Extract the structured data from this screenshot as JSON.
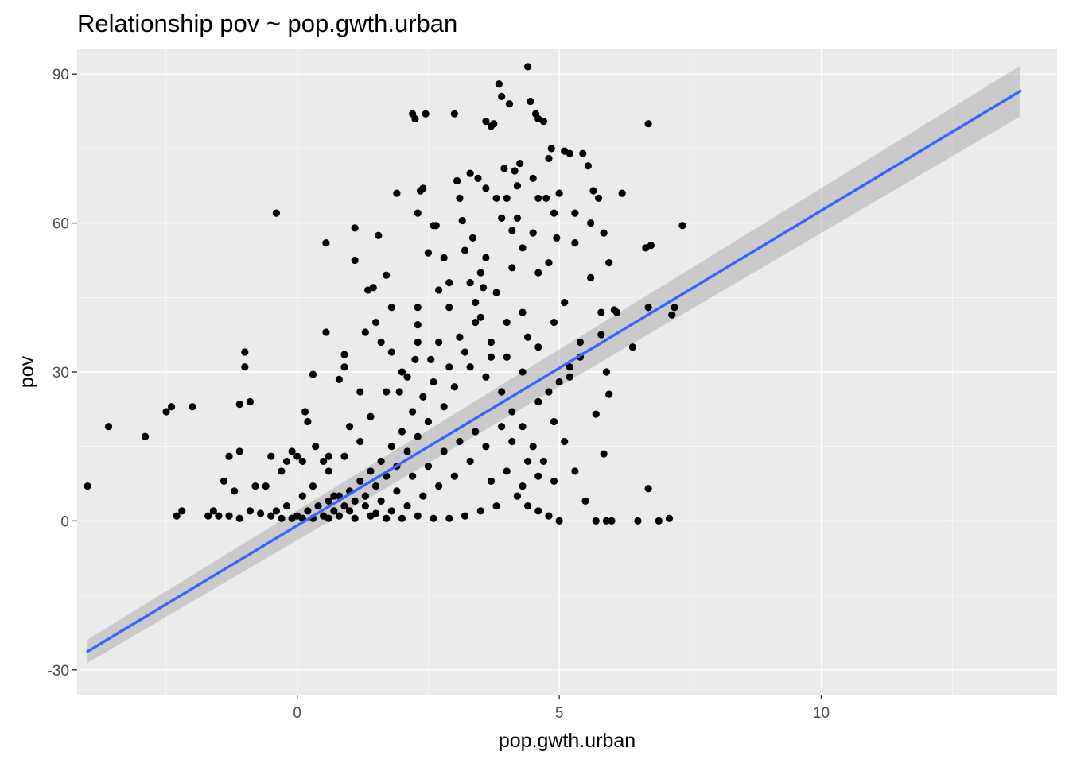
{
  "chart_data": {
    "type": "scatter",
    "title": "Relationship pov ~ pop.gwth.urban",
    "xlabel": "pop.gwth.urban",
    "ylabel": "pov",
    "xlim": [
      -4.2,
      14.5
    ],
    "ylim": [
      -35,
      95
    ],
    "xticks": [
      0,
      5,
      10
    ],
    "xminor": [
      -2.5,
      2.5,
      7.5,
      12.5
    ],
    "yticks": [
      -30,
      0,
      30,
      60,
      90
    ],
    "yminor": [
      -15,
      15,
      45,
      75
    ],
    "grid": true,
    "legend": "none",
    "colors": {
      "panel": "#ebebeb",
      "grid": "#ffffff",
      "points": "#000000",
      "fit_line": "#3366ff",
      "ci_band": "#999999"
    },
    "fit": {
      "method": "lm",
      "x": [
        -4.0,
        13.8
      ],
      "y": [
        -26.3,
        86.6
      ],
      "ci_lower": [
        -28.6,
        81.5
      ],
      "ci_upper": [
        -23.9,
        91.7
      ]
    },
    "points": [
      [
        -4.0,
        7
      ],
      [
        -3.6,
        19
      ],
      [
        -2.9,
        17
      ],
      [
        -2.5,
        22
      ],
      [
        -2.4,
        23
      ],
      [
        -2.0,
        23
      ],
      [
        -2.3,
        1
      ],
      [
        -2.2,
        2
      ],
      [
        -1.7,
        1
      ],
      [
        -1.6,
        2
      ],
      [
        -1.5,
        1
      ],
      [
        -1.4,
        8
      ],
      [
        -1.3,
        13
      ],
      [
        -1.2,
        6
      ],
      [
        -1.1,
        14
      ],
      [
        -1.0,
        31
      ],
      [
        -1.0,
        34
      ],
      [
        -1.1,
        23.5
      ],
      [
        -0.9,
        24
      ],
      [
        -0.8,
        7
      ],
      [
        -0.6,
        7
      ],
      [
        -0.5,
        13
      ],
      [
        -0.4,
        62
      ],
      [
        -0.3,
        10
      ],
      [
        -0.2,
        12
      ],
      [
        -0.1,
        14
      ],
      [
        0.0,
        13
      ],
      [
        0.1,
        12
      ],
      [
        0.15,
        22
      ],
      [
        0.2,
        20
      ],
      [
        0.3,
        29.5
      ],
      [
        0.35,
        15
      ],
      [
        0.5,
        12
      ],
      [
        0.55,
        38
      ],
      [
        0.55,
        56
      ],
      [
        0.6,
        13
      ],
      [
        0.7,
        5
      ],
      [
        0.8,
        28.5
      ],
      [
        0.9,
        31
      ],
      [
        0.9,
        33.5
      ],
      [
        1.0,
        19
      ],
      [
        1.1,
        52.5
      ],
      [
        1.1,
        59
      ],
      [
        1.2,
        26
      ],
      [
        1.3,
        38
      ],
      [
        1.35,
        46.5
      ],
      [
        1.45,
        47
      ],
      [
        1.5,
        40
      ],
      [
        1.55,
        57.5
      ],
      [
        1.6,
        36
      ],
      [
        1.7,
        49.5
      ],
      [
        1.8,
        43
      ],
      [
        1.9,
        66
      ],
      [
        1.8,
        34
      ],
      [
        1.95,
        26
      ],
      [
        2.1,
        29
      ],
      [
        2.2,
        82
      ],
      [
        2.25,
        81
      ],
      [
        2.3,
        62
      ],
      [
        2.35,
        66.5
      ],
      [
        2.4,
        67
      ],
      [
        2.45,
        82
      ],
      [
        2.5,
        54
      ],
      [
        2.6,
        59.5
      ],
      [
        2.65,
        59.5
      ],
      [
        2.3,
        43
      ],
      [
        2.3,
        39.5
      ],
      [
        2.3,
        36
      ],
      [
        2.25,
        32.5
      ],
      [
        2.55,
        32.5
      ],
      [
        2.7,
        46.5
      ],
      [
        2.8,
        53
      ],
      [
        2.9,
        48
      ],
      [
        3.0,
        82
      ],
      [
        3.05,
        68.5
      ],
      [
        3.1,
        65
      ],
      [
        3.15,
        60.5
      ],
      [
        3.2,
        54.5
      ],
      [
        3.3,
        70
      ],
      [
        3.35,
        57
      ],
      [
        3.4,
        44
      ],
      [
        3.45,
        69
      ],
      [
        3.5,
        50
      ],
      [
        3.55,
        47
      ],
      [
        3.6,
        80.5
      ],
      [
        3.6,
        67
      ],
      [
        3.7,
        79.5
      ],
      [
        3.75,
        80
      ],
      [
        3.8,
        65
      ],
      [
        3.85,
        88
      ],
      [
        3.9,
        85.5
      ],
      [
        3.95,
        71
      ],
      [
        4.0,
        65
      ],
      [
        4.05,
        84
      ],
      [
        4.1,
        58.5
      ],
      [
        4.15,
        70.5
      ],
      [
        4.2,
        67.5
      ],
      [
        4.25,
        72
      ],
      [
        4.3,
        55
      ],
      [
        4.4,
        91.5
      ],
      [
        4.45,
        84.5
      ],
      [
        4.5,
        69
      ],
      [
        4.55,
        82
      ],
      [
        4.6,
        81
      ],
      [
        4.7,
        80.5
      ],
      [
        4.75,
        65
      ],
      [
        4.8,
        73
      ],
      [
        4.85,
        75
      ],
      [
        4.9,
        62
      ],
      [
        4.95,
        57
      ],
      [
        5.1,
        74.5
      ],
      [
        5.2,
        74
      ],
      [
        5.3,
        62
      ],
      [
        5.45,
        74
      ],
      [
        5.55,
        71.5
      ],
      [
        5.65,
        66.5
      ],
      [
        5.75,
        65
      ],
      [
        5.85,
        58
      ],
      [
        5.95,
        52
      ],
      [
        6.05,
        42.5
      ],
      [
        6.2,
        66
      ],
      [
        6.7,
        80
      ],
      [
        6.65,
        55
      ],
      [
        6.75,
        55.5
      ],
      [
        6.7,
        43
      ],
      [
        7.35,
        59.5
      ],
      [
        7.15,
        41.5
      ],
      [
        7.2,
        43
      ],
      [
        5.8,
        37.5
      ],
      [
        5.9,
        30
      ],
      [
        5.95,
        25.5
      ],
      [
        5.7,
        21.5
      ],
      [
        5.85,
        13.5
      ],
      [
        6.7,
        6.5
      ],
      [
        7.1,
        0.5
      ],
      [
        5.4,
        36
      ],
      [
        5.2,
        29
      ],
      [
        5.0,
        28
      ],
      [
        4.8,
        26
      ],
      [
        4.6,
        24
      ],
      [
        4.3,
        30
      ],
      [
        4.0,
        33
      ],
      [
        3.7,
        36
      ],
      [
        3.4,
        40
      ],
      [
        3.1,
        37
      ],
      [
        2.9,
        31
      ],
      [
        2.6,
        28
      ],
      [
        2.4,
        25
      ],
      [
        2.2,
        22
      ],
      [
        2.0,
        18
      ],
      [
        1.8,
        15
      ],
      [
        1.6,
        12
      ],
      [
        1.4,
        10
      ],
      [
        1.2,
        8
      ],
      [
        1.0,
        6
      ],
      [
        0.8,
        5
      ],
      [
        0.6,
        4
      ],
      [
        0.4,
        3
      ],
      [
        0.2,
        2
      ],
      [
        0.0,
        1
      ],
      [
        5.3,
        10
      ],
      [
        5.5,
        4
      ],
      [
        5.7,
        0
      ],
      [
        5.9,
        0
      ],
      [
        6.0,
        0
      ],
      [
        6.5,
        0
      ],
      [
        6.9,
        0
      ],
      [
        5.0,
        0
      ],
      [
        4.9,
        8
      ],
      [
        4.7,
        12
      ],
      [
        4.5,
        15
      ],
      [
        4.3,
        19
      ],
      [
        4.1,
        22
      ],
      [
        3.9,
        26
      ],
      [
        3.6,
        29
      ],
      [
        3.3,
        31
      ],
      [
        3.0,
        27
      ],
      [
        2.8,
        23
      ],
      [
        2.5,
        20
      ],
      [
        2.3,
        17
      ],
      [
        2.1,
        14
      ],
      [
        1.9,
        11
      ],
      [
        1.7,
        9
      ],
      [
        1.5,
        7
      ],
      [
        1.3,
        5
      ],
      [
        1.1,
        4
      ],
      [
        0.9,
        3
      ],
      [
        0.7,
        2
      ],
      [
        0.5,
        1
      ],
      [
        0.3,
        0.5
      ],
      [
        0.1,
        0.5
      ],
      [
        -0.1,
        0.5
      ],
      [
        -0.3,
        0.5
      ],
      [
        -0.5,
        1
      ],
      [
        -0.7,
        1.5
      ],
      [
        -0.9,
        2
      ],
      [
        -1.1,
        0.5
      ],
      [
        -1.3,
        1
      ],
      [
        4.2,
        5
      ],
      [
        4.4,
        3
      ],
      [
        4.6,
        2
      ],
      [
        4.8,
        1
      ],
      [
        3.8,
        3
      ],
      [
        3.5,
        2
      ],
      [
        3.2,
        1
      ],
      [
        2.9,
        0.5
      ],
      [
        2.6,
        0.5
      ],
      [
        2.3,
        1
      ],
      [
        2.0,
        0.5
      ],
      [
        1.7,
        0.5
      ],
      [
        1.4,
        1
      ],
      [
        1.1,
        0.5
      ],
      [
        0.8,
        1
      ],
      [
        0.6,
        0.5
      ],
      [
        3.6,
        15
      ],
      [
        3.3,
        12
      ],
      [
        3.0,
        9
      ],
      [
        2.7,
        7
      ],
      [
        2.4,
        5
      ],
      [
        2.1,
        3
      ],
      [
        1.8,
        2
      ],
      [
        1.5,
        1.5
      ],
      [
        4.0,
        10
      ],
      [
        3.7,
        8
      ],
      [
        4.4,
        12
      ],
      [
        4.1,
        16
      ],
      [
        3.9,
        19
      ],
      [
        3.4,
        18
      ],
      [
        3.1,
        16
      ],
      [
        2.8,
        14
      ],
      [
        2.5,
        11
      ],
      [
        2.2,
        9
      ],
      [
        1.9,
        6
      ],
      [
        1.6,
        4
      ],
      [
        1.3,
        3
      ],
      [
        1.0,
        2
      ],
      [
        5.1,
        16
      ],
      [
        4.9,
        20
      ],
      [
        4.6,
        9
      ],
      [
        4.3,
        7
      ],
      [
        3.6,
        53
      ],
      [
        3.8,
        46
      ],
      [
        4.1,
        51
      ],
      [
        4.3,
        42
      ],
      [
        4.6,
        50
      ],
      [
        3.3,
        48
      ],
      [
        2.9,
        43
      ],
      [
        3.5,
        41
      ],
      [
        4.4,
        37
      ],
      [
        4.6,
        35
      ],
      [
        4.0,
        40
      ],
      [
        3.7,
        33
      ],
      [
        3.2,
        34
      ],
      [
        2.7,
        36
      ],
      [
        2.0,
        30
      ],
      [
        1.7,
        26
      ],
      [
        1.4,
        21
      ],
      [
        1.2,
        16
      ],
      [
        0.9,
        13
      ],
      [
        0.6,
        10
      ],
      [
        0.3,
        7
      ],
      [
        0.1,
        5
      ],
      [
        -0.2,
        3
      ],
      [
        -0.4,
        2
      ],
      [
        5.2,
        31
      ],
      [
        5.4,
        33
      ],
      [
        5.6,
        49
      ],
      [
        5.8,
        42
      ],
      [
        6.1,
        42
      ],
      [
        6.4,
        35
      ],
      [
        4.9,
        40
      ],
      [
        5.1,
        44
      ],
      [
        4.2,
        61
      ],
      [
        4.5,
        58
      ],
      [
        4.8,
        52
      ],
      [
        5.3,
        56
      ],
      [
        5.6,
        60
      ],
      [
        5.0,
        66
      ],
      [
        4.6,
        65
      ],
      [
        3.9,
        61
      ]
    ]
  }
}
